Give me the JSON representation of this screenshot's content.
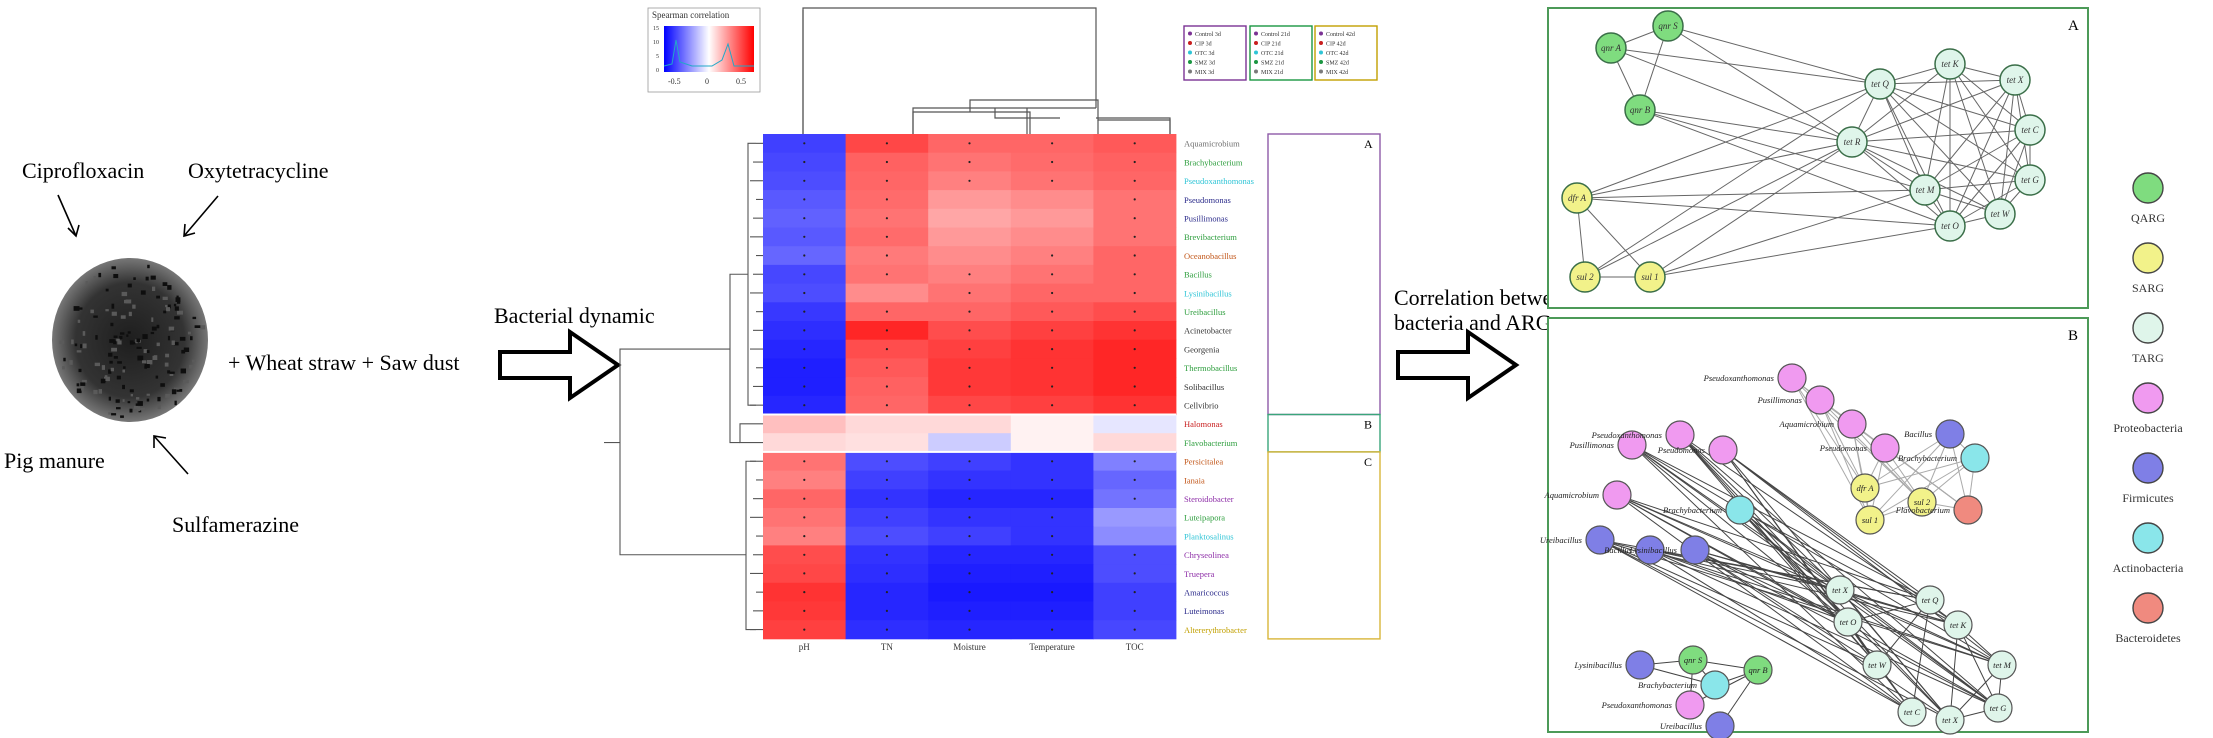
{
  "left": {
    "labels": {
      "cip": "Ciprofloxacin",
      "otc": "Oxytetracycline",
      "pig": "Pig manure",
      "smz": "Sulfamerazine",
      "mix": "+ Wheat straw + Saw dust"
    },
    "arrow1_label": "Bacterial dynamic",
    "arrow2_label_line1": "Correlation between",
    "arrow2_label_line2": "bacteria and ARGs"
  },
  "heatmap": {
    "colorkey": {
      "title": "Spearman correlation",
      "ticks": [
        "-0.5",
        "0",
        "0.5"
      ],
      "yticks": [
        "15",
        "10",
        "5",
        "0"
      ]
    },
    "sample_legend": [
      [
        "Control 3d",
        "CIP 3d",
        "OTC 3d",
        "SMZ 3d",
        "MIX 3d"
      ],
      [
        "Control 21d",
        "CIP 21d",
        "OTC 21d",
        "SMZ 21d",
        "MIX 21d"
      ],
      [
        "Control 42d",
        "CIP 42d",
        "OTC 42d",
        "SMZ 42d",
        "MIX 42d"
      ]
    ],
    "sample_legend_colors": [
      "#7b3294",
      "#1a9641",
      "#c2a000"
    ],
    "columns": [
      "pH",
      "TN",
      "Moisture",
      "Temperature",
      "TOC"
    ],
    "rows": [
      {
        "name": "Aquamicrobium",
        "color": "#6d6d6d"
      },
      {
        "name": "Brachybacterium",
        "color": "#2e9e3e"
      },
      {
        "name": "Pseudoxanthomonas",
        "color": "#2ec4d6"
      },
      {
        "name": "Pseudomonas",
        "color": "#2a2a8a"
      },
      {
        "name": "Pusillimonas",
        "color": "#2a2a8a"
      },
      {
        "name": "Brevibacterium",
        "color": "#2e9e3e"
      },
      {
        "name": "Oceanobacillus",
        "color": "#c2571a"
      },
      {
        "name": "Bacillus",
        "color": "#2e9e3e"
      },
      {
        "name": "Lysinibacillus",
        "color": "#2ec4d6"
      },
      {
        "name": "Ureibacillus",
        "color": "#2e9e3e"
      },
      {
        "name": "Acinetobacter",
        "color": "#333333"
      },
      {
        "name": "Georgenia",
        "color": "#333333"
      },
      {
        "name": "Thermobacillus",
        "color": "#2e9e3e"
      },
      {
        "name": "Solibacillus",
        "color": "#333333"
      },
      {
        "name": "Cellvibrio",
        "color": "#333333"
      },
      {
        "name": "Halomonas",
        "color": "#c81e1e"
      },
      {
        "name": "Flavobacterium",
        "color": "#2e9e3e"
      },
      {
        "name": "Persicitalea",
        "color": "#c2571a"
      },
      {
        "name": "Ianaia",
        "color": "#c2571a"
      },
      {
        "name": "Steroidobacter",
        "color": "#8e2fa8"
      },
      {
        "name": "Luteipapora",
        "color": "#2e9e3e"
      },
      {
        "name": "Planktosalinus",
        "color": "#2ec4d6"
      },
      {
        "name": "Chryseolinea",
        "color": "#8e2fa8"
      },
      {
        "name": "Truepera",
        "color": "#8e2fa8"
      },
      {
        "name": "Amaricoccus",
        "color": "#2a2a8a"
      },
      {
        "name": "Luteimonas",
        "color": "#2a2a8a"
      },
      {
        "name": "Altererythrobacter",
        "color": "#c2a000"
      }
    ],
    "values": [
      [
        -0.75,
        0.72,
        0.6,
        0.6,
        0.65
      ],
      [
        -0.72,
        0.62,
        0.55,
        0.58,
        0.62
      ],
      [
        -0.7,
        0.6,
        0.5,
        0.55,
        0.6
      ],
      [
        -0.65,
        0.58,
        0.4,
        0.45,
        0.55
      ],
      [
        -0.62,
        0.55,
        0.35,
        0.4,
        0.55
      ],
      [
        -0.65,
        0.58,
        0.4,
        0.45,
        0.55
      ],
      [
        -0.6,
        0.52,
        0.45,
        0.5,
        0.6
      ],
      [
        -0.72,
        0.55,
        0.5,
        0.55,
        0.6
      ],
      [
        -0.7,
        0.45,
        0.55,
        0.6,
        0.6
      ],
      [
        -0.78,
        0.6,
        0.6,
        0.65,
        0.7
      ],
      [
        -0.82,
        0.85,
        0.7,
        0.75,
        0.8
      ],
      [
        -0.85,
        0.7,
        0.75,
        0.8,
        0.85
      ],
      [
        -0.88,
        0.65,
        0.78,
        0.8,
        0.85
      ],
      [
        -0.88,
        0.62,
        0.78,
        0.8,
        0.85
      ],
      [
        -0.85,
        0.6,
        0.72,
        0.75,
        0.8
      ],
      [
        0.25,
        0.15,
        0.15,
        0.05,
        -0.1
      ],
      [
        0.15,
        0.12,
        -0.2,
        0.05,
        0.15
      ],
      [
        0.55,
        -0.7,
        -0.75,
        -0.8,
        -0.5
      ],
      [
        0.5,
        -0.75,
        -0.8,
        -0.8,
        -0.6
      ],
      [
        0.6,
        -0.8,
        -0.85,
        -0.85,
        -0.55
      ],
      [
        0.55,
        -0.75,
        -0.8,
        -0.8,
        -0.4
      ],
      [
        0.5,
        -0.7,
        -0.75,
        -0.8,
        -0.45
      ],
      [
        0.7,
        -0.8,
        -0.85,
        -0.85,
        -0.7
      ],
      [
        0.72,
        -0.82,
        -0.88,
        -0.88,
        -0.7
      ],
      [
        0.8,
        -0.85,
        -0.9,
        -0.9,
        -0.75
      ],
      [
        0.78,
        -0.85,
        -0.88,
        -0.88,
        -0.75
      ],
      [
        0.75,
        -0.82,
        -0.85,
        -0.85,
        -0.72
      ]
    ],
    "groups": [
      {
        "label": "A",
        "color": "#8e5aa8",
        "rows": [
          0,
          14
        ]
      },
      {
        "label": "B",
        "color": "#3aa57a",
        "rows": [
          15,
          16
        ]
      },
      {
        "label": "C",
        "color": "#d9b63a",
        "rows": [
          17,
          26
        ]
      }
    ]
  },
  "networkA": {
    "label": "A",
    "nodes": [
      {
        "id": "qnrA",
        "label": "qnr A",
        "type": "QARG"
      },
      {
        "id": "qnrS",
        "label": "qnr S",
        "type": "QARG"
      },
      {
        "id": "qnrB",
        "label": "qnr B",
        "type": "QARG"
      },
      {
        "id": "dfrA",
        "label": "dfr A",
        "type": "SARG"
      },
      {
        "id": "sul2",
        "label": "sul 2",
        "type": "SARG"
      },
      {
        "id": "sul1",
        "label": "sul 1",
        "type": "SARG"
      },
      {
        "id": "tetQ0",
        "label": "tet Q",
        "type": "TARG"
      },
      {
        "id": "tetK",
        "label": "tet K",
        "type": "TARG"
      },
      {
        "id": "tetX",
        "label": "tet X",
        "type": "TARG"
      },
      {
        "id": "tetR",
        "label": "tet R",
        "type": "TARG"
      },
      {
        "id": "tetC",
        "label": "tet C",
        "type": "TARG"
      },
      {
        "id": "tetM",
        "label": "tet M",
        "type": "TARG"
      },
      {
        "id": "tetG",
        "label": "tet G",
        "type": "TARG"
      },
      {
        "id": "tetO",
        "label": "tet O",
        "type": "TARG"
      },
      {
        "id": "tetW",
        "label": "tet W",
        "type": "TARG"
      }
    ]
  },
  "networkB": {
    "label": "B",
    "nodes": [
      {
        "id": "b1",
        "label": "Pseudoxanthomonas",
        "type": "Proteobacteria"
      },
      {
        "id": "b2",
        "label": "Pusillimonas",
        "type": "Proteobacteria"
      },
      {
        "id": "b3",
        "label": "Aquamicrobium",
        "type": "Proteobacteria"
      },
      {
        "id": "b4",
        "label": "Pseudomonas",
        "type": "Proteobacteria"
      },
      {
        "id": "b5",
        "label": "Bacillus",
        "type": "Firmicutes"
      },
      {
        "id": "b6",
        "label": "Brachybacterium",
        "type": "Actinobacteria"
      },
      {
        "id": "b7",
        "label": "dfr A",
        "type": "SARG"
      },
      {
        "id": "b8",
        "label": "sul 1",
        "type": "SARG"
      },
      {
        "id": "b9",
        "label": "sul 2",
        "type": "SARG"
      },
      {
        "id": "b10",
        "label": "Flavobacterium",
        "type": "Bacteroidetes"
      },
      {
        "id": "c1",
        "label": "Pusillimonas",
        "type": "Proteobacteria"
      },
      {
        "id": "c2",
        "label": "Pseudoxanthomonas",
        "type": "Proteobacteria"
      },
      {
        "id": "c3",
        "label": "Pseudomonas",
        "type": "Proteobacteria"
      },
      {
        "id": "c4",
        "label": "Aquamicrobium",
        "type": "Proteobacteria"
      },
      {
        "id": "c5",
        "label": "Brachybacterium",
        "type": "Actinobacteria"
      },
      {
        "id": "c6",
        "label": "Ureibacillus",
        "type": "Firmicutes"
      },
      {
        "id": "c7",
        "label": "Bacillus",
        "type": "Firmicutes"
      },
      {
        "id": "c8",
        "label": "Lysinibacillus",
        "type": "Firmicutes"
      },
      {
        "id": "c9",
        "label": "tet X",
        "type": "TARG"
      },
      {
        "id": "c10",
        "label": "tet Q",
        "type": "TARG"
      },
      {
        "id": "c11",
        "label": "tet K",
        "type": "TARG"
      },
      {
        "id": "c12",
        "label": "tet O",
        "type": "TARG"
      },
      {
        "id": "c13",
        "label": "tet M",
        "type": "TARG"
      },
      {
        "id": "c14",
        "label": "tet W",
        "type": "TARG"
      },
      {
        "id": "c15",
        "label": "tet G",
        "type": "TARG"
      },
      {
        "id": "c16",
        "label": "tet C",
        "type": "TARG"
      },
      {
        "id": "c17",
        "label": "tet X",
        "type": "TARG"
      },
      {
        "id": "c18",
        "label": "qnr S",
        "type": "QARG"
      },
      {
        "id": "c19",
        "label": "qnr B",
        "type": "QARG"
      },
      {
        "id": "c20",
        "label": "Brachybacterium",
        "type": "Actinobacteria"
      },
      {
        "id": "c21",
        "label": "Lysinibacillus",
        "type": "Firmicutes"
      },
      {
        "id": "c22",
        "label": "Pseudoxanthomonas",
        "type": "Proteobacteria"
      },
      {
        "id": "c23",
        "label": "Ureibacillus",
        "type": "Firmicutes"
      }
    ]
  },
  "legend": [
    {
      "label": "QARG",
      "color": "#7fdc7f"
    },
    {
      "label": "SARG",
      "color": "#f2f28a"
    },
    {
      "label": "TARG",
      "color": "#dff5ea"
    },
    {
      "label": "Proteobacteria",
      "color": "#f09af0"
    },
    {
      "label": "Firmicutes",
      "color": "#7f7fe6"
    },
    {
      "label": "Actinobacteria",
      "color": "#8ae6ea"
    },
    {
      "label": "Bacteroidetes",
      "color": "#f08a7f"
    }
  ]
}
